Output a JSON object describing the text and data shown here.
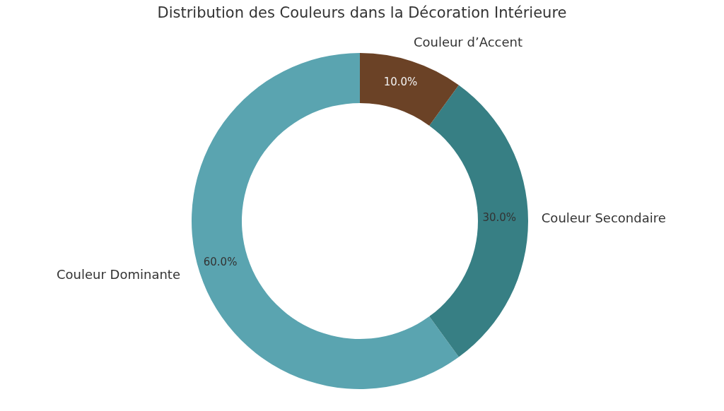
{
  "chart_data": {
    "type": "donut",
    "title": "Distribution des Couleurs dans la Décoration Intérieure",
    "categories": [
      "Couleur Dominante",
      "Couleur Secondaire",
      "Couleur d’Accent"
    ],
    "values": [
      60,
      30,
      10
    ],
    "colors": [
      "#5aa4b0",
      "#377f84",
      "#6b4226"
    ],
    "value_labels": [
      "60.0%",
      "30.0%",
      "10.0%"
    ],
    "legend": false
  }
}
